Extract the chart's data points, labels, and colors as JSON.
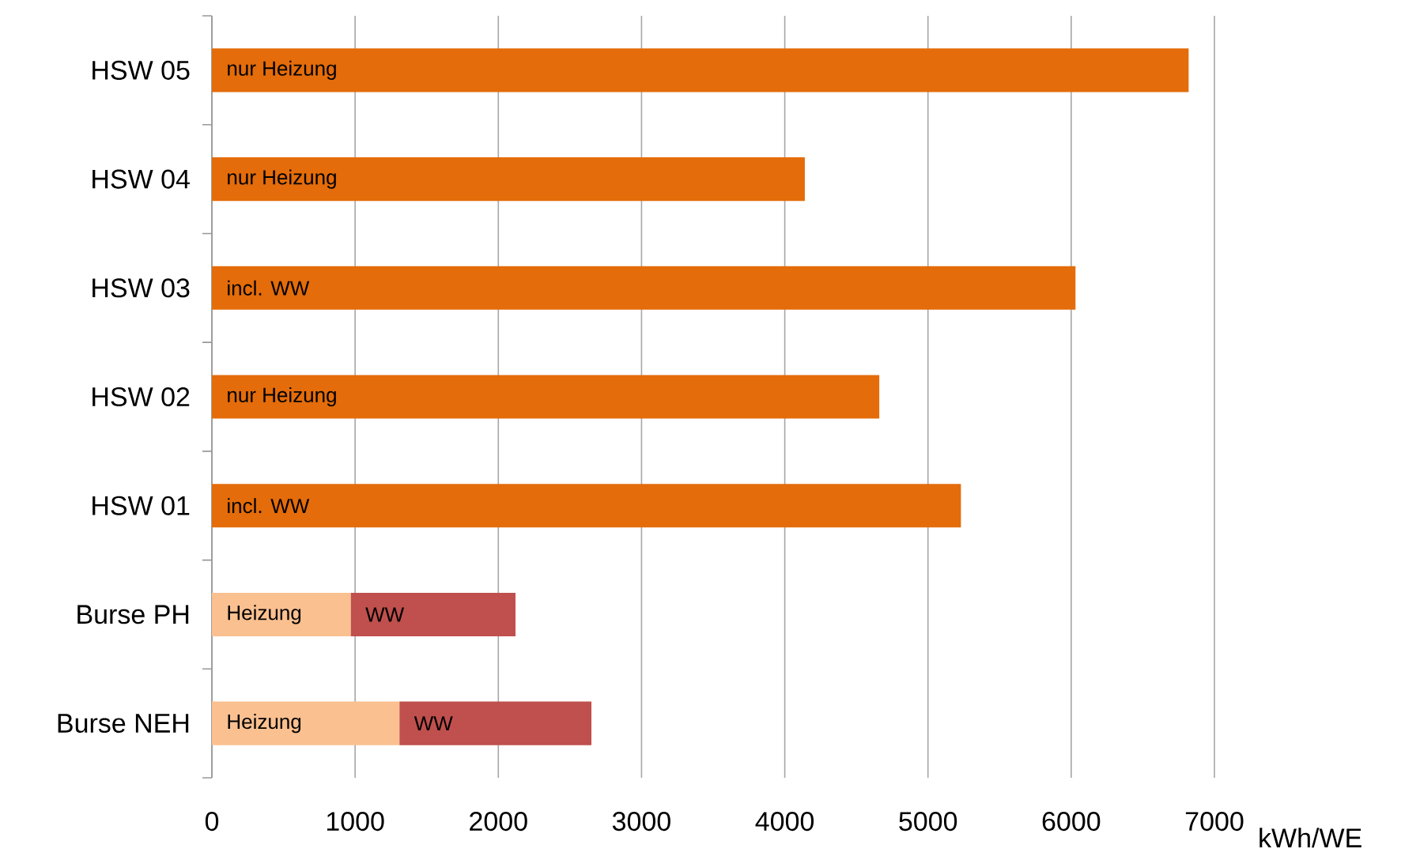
{
  "chart_data": {
    "type": "bar",
    "orientation": "horizontal",
    "stacked": true,
    "categories": [
      "HSW 05",
      "HSW 04",
      "HSW 03",
      "HSW 02",
      "HSW 01",
      "Burse PH",
      "Burse NEH"
    ],
    "series": [
      {
        "name": "nur Heizung",
        "color": "#e46c0a",
        "values": [
          6820,
          4140,
          null,
          4660,
          null,
          null,
          null
        ]
      },
      {
        "name": "incl. WW",
        "color": "#e46c0a",
        "values": [
          null,
          null,
          6030,
          null,
          5230,
          null,
          null
        ]
      },
      {
        "name": "Heizung",
        "color": "#fac090",
        "values": [
          null,
          null,
          null,
          null,
          null,
          970,
          1310
        ]
      },
      {
        "name": "WW",
        "color": "#c0504d",
        "values": [
          null,
          null,
          null,
          null,
          null,
          1150,
          1340
        ]
      }
    ],
    "xlabel": "kWh/WE",
    "xlim": [
      0,
      7000
    ],
    "xticks": [
      0,
      1000,
      2000,
      3000,
      4000,
      5000,
      6000,
      7000
    ],
    "grid": "x"
  }
}
